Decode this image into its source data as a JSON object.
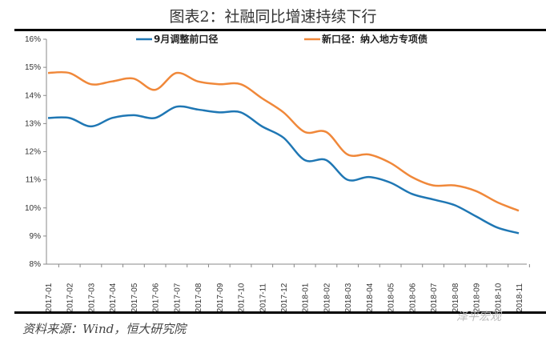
{
  "chart_data": {
    "type": "line",
    "title": "图表2：社融同比增速持续下行",
    "xlabel": "",
    "ylabel": "",
    "x": [
      "2017-01",
      "2017-02",
      "2017-03",
      "2017-04",
      "2017-05",
      "2017-06",
      "2017-07",
      "2017-08",
      "2017-09",
      "2017-10",
      "2017-11",
      "2017-12",
      "2018-01",
      "2018-02",
      "2018-03",
      "2018-04",
      "2018-05",
      "2018-06",
      "2018-07",
      "2018-08",
      "2018-09",
      "2018-10",
      "2018-11"
    ],
    "ylim": [
      8,
      16
    ],
    "yticks": [
      "8%",
      "9%",
      "10%",
      "11%",
      "12%",
      "13%",
      "14%",
      "15%",
      "16%"
    ],
    "grid": false,
    "legend_placement": "top",
    "series": [
      {
        "name": "9月调整前口径",
        "color": "#1f77b4",
        "values": [
          13.2,
          13.2,
          12.9,
          13.2,
          13.3,
          13.2,
          13.6,
          13.5,
          13.4,
          13.4,
          12.9,
          12.5,
          11.7,
          11.7,
          11.0,
          11.1,
          10.9,
          10.5,
          10.3,
          10.1,
          9.7,
          9.3,
          9.1
        ]
      },
      {
        "name": "新口径：纳入地方专项债",
        "color": "#f0883a",
        "values": [
          14.8,
          14.8,
          14.4,
          14.5,
          14.6,
          14.2,
          14.8,
          14.5,
          14.4,
          14.4,
          13.9,
          13.4,
          12.7,
          12.7,
          11.9,
          11.9,
          11.6,
          11.1,
          10.8,
          10.8,
          10.6,
          10.2,
          9.9
        ]
      }
    ]
  },
  "source": "资料来源：Wind，恒大研究院",
  "watermark": "泽平宏观"
}
